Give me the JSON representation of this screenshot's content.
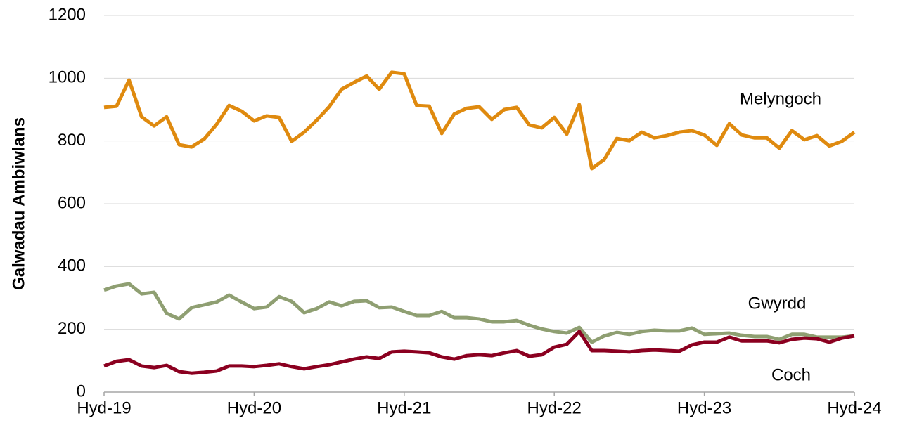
{
  "chart_data": {
    "type": "line",
    "y_label": "Galwadau Ambiwlans",
    "categories": [
      "Hyd-19",
      null,
      null,
      null,
      null,
      null,
      null,
      null,
      null,
      null,
      null,
      null,
      "Hyd-20",
      null,
      null,
      null,
      null,
      null,
      null,
      null,
      null,
      null,
      null,
      null,
      "Hyd-21",
      null,
      null,
      null,
      null,
      null,
      null,
      null,
      null,
      null,
      null,
      null,
      "Hyd-22",
      null,
      null,
      null,
      null,
      null,
      null,
      null,
      null,
      null,
      null,
      null,
      "Hyd-23",
      null,
      null,
      null,
      null,
      null,
      null,
      null,
      null,
      null,
      null,
      null,
      "Hyd-24"
    ],
    "series": [
      {
        "name": "Melyngoch",
        "color": "#df8a0f",
        "values": [
          907,
          911,
          994,
          877,
          848,
          877,
          788,
          781,
          806,
          853,
          913,
          895,
          864,
          880,
          875,
          799,
          828,
          866,
          909,
          965,
          987,
          1007,
          965,
          1019,
          1014,
          913,
          911,
          824,
          886,
          904,
          909,
          869,
          900,
          907,
          851,
          842,
          875,
          822,
          916,
          712,
          741,
          808,
          801,
          828,
          810,
          817,
          828,
          833,
          819,
          786,
          855,
          819,
          810,
          810,
          777,
          833,
          804,
          817,
          784,
          799,
          828
        ]
      },
      {
        "name": "Gwyrdd",
        "color": "#8f9f72",
        "values": [
          325,
          338,
          345,
          313,
          318,
          251,
          233,
          269,
          278,
          287,
          309,
          287,
          266,
          271,
          304,
          289,
          253,
          266,
          287,
          275,
          289,
          291,
          269,
          271,
          257,
          244,
          244,
          257,
          237,
          237,
          233,
          224,
          224,
          228,
          213,
          201,
          193,
          188,
          206,
          159,
          179,
          190,
          184,
          193,
          197,
          195,
          195,
          204,
          184,
          186,
          188,
          181,
          177,
          177,
          168,
          184,
          184,
          175,
          175,
          175,
          179
        ]
      },
      {
        "name": "Coch",
        "color": "#8b0020",
        "values": [
          83,
          98,
          103,
          83,
          78,
          85,
          65,
          60,
          63,
          67,
          83,
          83,
          81,
          85,
          90,
          81,
          74,
          81,
          87,
          96,
          105,
          112,
          107,
          128,
          130,
          128,
          125,
          112,
          105,
          116,
          119,
          116,
          125,
          132,
          114,
          119,
          143,
          152,
          193,
          132,
          132,
          130,
          128,
          132,
          134,
          132,
          130,
          150,
          159,
          159,
          175,
          163,
          163,
          163,
          157,
          168,
          172,
          170,
          159,
          172,
          179
        ]
      }
    ],
    "ylim": [
      0,
      1200
    ],
    "yticks": [
      0,
      200,
      400,
      600,
      800,
      1000,
      1200
    ],
    "grid": true
  }
}
